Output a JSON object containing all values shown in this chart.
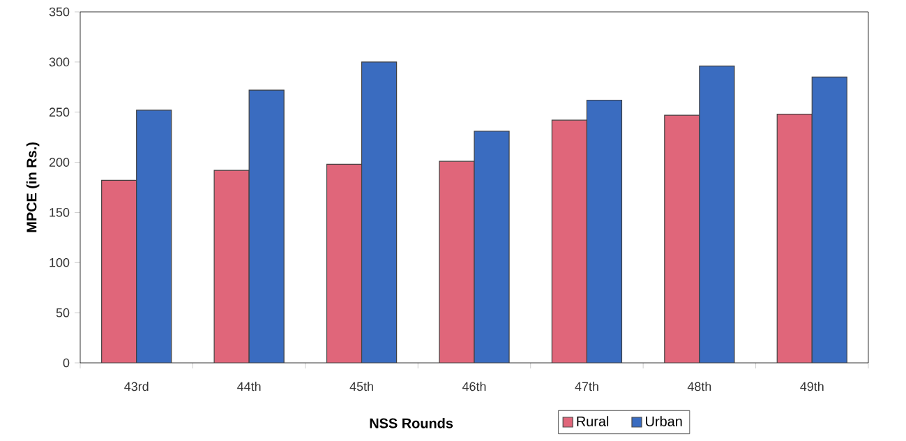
{
  "chart_data": {
    "type": "bar",
    "xlabel": "NSS Rounds",
    "ylabel": "MPCE (in Rs.)",
    "categories": [
      "43rd",
      "44th",
      "45th",
      "46th",
      "47th",
      "48th",
      "49th"
    ],
    "series": [
      {
        "name": "Rural",
        "color": "#e0667a",
        "values": [
          182,
          192,
          198,
          201,
          242,
          247,
          248
        ]
      },
      {
        "name": "Urban",
        "color": "#3a6cc0",
        "values": [
          252,
          272,
          300,
          231,
          262,
          296,
          285
        ]
      }
    ],
    "ylim": [
      0,
      350
    ],
    "yticks": [
      0,
      50,
      100,
      150,
      200,
      250,
      300,
      350
    ],
    "grid": false,
    "legend": "bottom"
  }
}
